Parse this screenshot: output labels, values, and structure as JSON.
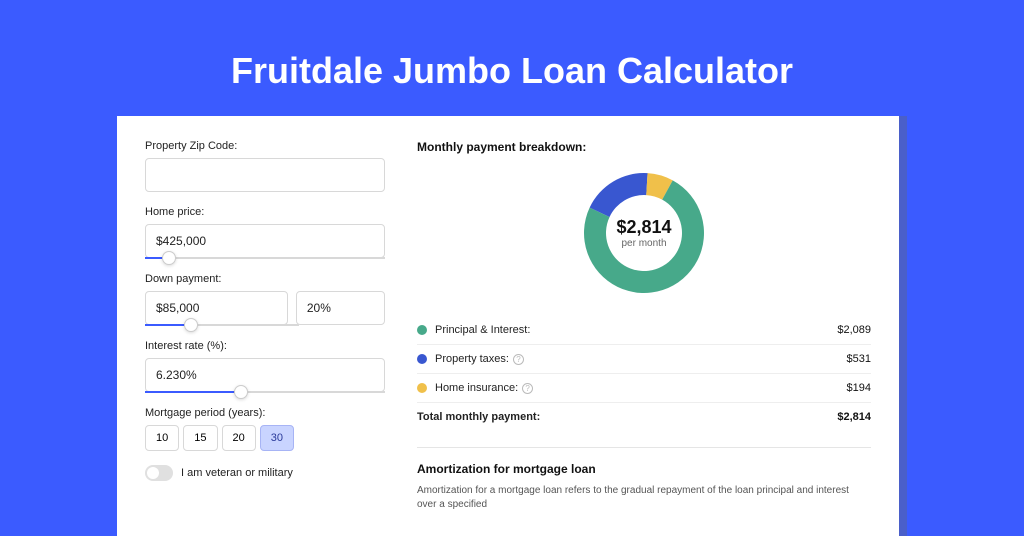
{
  "title": "Fruitdale Jumbo Loan Calculator",
  "colors": {
    "page_bg": "#3b5bff",
    "card_shadow": "#4a5fc9",
    "text": "#222222",
    "border": "#d8d8d8",
    "accent": "#3b5bff"
  },
  "form": {
    "zip": {
      "label": "Property Zip Code:",
      "value": ""
    },
    "home_price": {
      "label": "Home price:",
      "value": "$425,000",
      "slider_pct": 10
    },
    "down_payment": {
      "label": "Down payment:",
      "amount": "$85,000",
      "percent": "20%",
      "slider_pct": 30
    },
    "interest": {
      "label": "Interest rate (%):",
      "value": "6.230%",
      "slider_pct": 40
    },
    "period": {
      "label": "Mortgage period (years):",
      "options": [
        "10",
        "15",
        "20",
        "30"
      ],
      "selected": "30"
    },
    "veteran": {
      "label": "I am veteran or military",
      "checked": false
    }
  },
  "breakdown": {
    "title": "Monthly payment breakdown:",
    "center_amount": "$2,814",
    "center_sub": "per month",
    "items": [
      {
        "label": "Principal & Interest:",
        "value": "$2,089",
        "color": "#47a98a",
        "info": false,
        "pct": 74
      },
      {
        "label": "Property taxes:",
        "value": "$531",
        "color": "#3957d0",
        "info": true,
        "pct": 19
      },
      {
        "label": "Home insurance:",
        "value": "$194",
        "color": "#f0c04a",
        "info": true,
        "pct": 7
      }
    ],
    "total": {
      "label": "Total monthly payment:",
      "value": "$2,814"
    }
  },
  "amortization": {
    "title": "Amortization for mortgage loan",
    "text": "Amortization for a mortgage loan refers to the gradual repayment of the loan principal and interest over a specified"
  }
}
